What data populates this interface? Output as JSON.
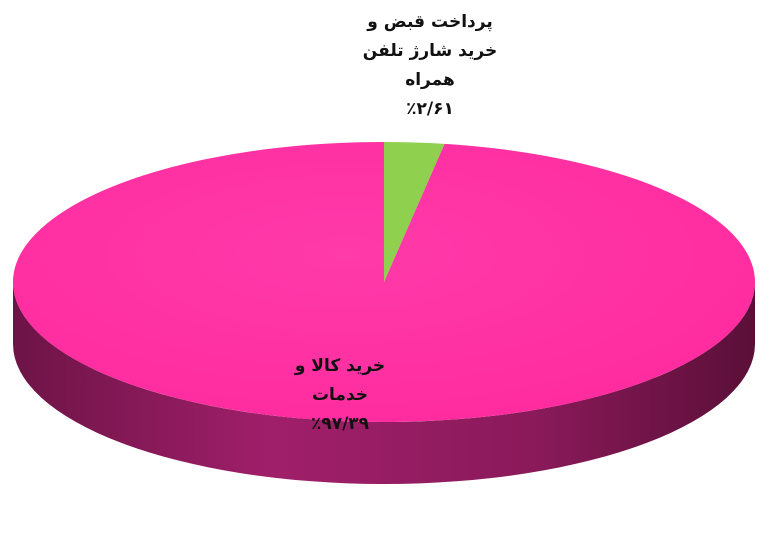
{
  "chart_data": {
    "type": "pie",
    "style": "3d",
    "title": "",
    "slices": [
      {
        "label_lines": [
          "پرداخت قبض و",
          "خرید شارژ تلفن",
          "همراه"
        ],
        "value": 2.61,
        "value_label": "٪۲/۶۱",
        "color": "#8fd14f",
        "side_color": "#5e9a2c"
      },
      {
        "label_lines": [
          "خرید کالا و",
          "خدمات"
        ],
        "value": 97.39,
        "value_label": "٪۹۷/۳۹",
        "color": "#ff2fa2",
        "side_color": "#8a1a5a"
      }
    ],
    "legend": "none"
  }
}
